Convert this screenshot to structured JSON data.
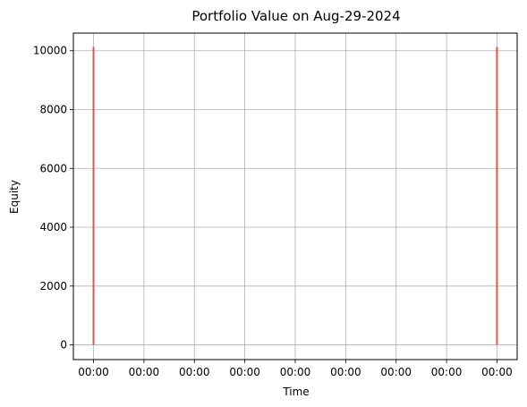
{
  "chart_data": {
    "type": "line",
    "title": "Portfolio Value on Aug-29-2024",
    "xlabel": "Time",
    "ylabel": "Equity",
    "x_tick_labels": [
      "00:00",
      "00:00",
      "00:00",
      "00:00",
      "00:00",
      "00:00",
      "00:00",
      "00:00",
      "00:00"
    ],
    "x_range": [
      -0.4,
      8.4
    ],
    "ylim": [
      -500,
      10600
    ],
    "yticks": [
      0,
      2000,
      4000,
      6000,
      8000,
      10000
    ],
    "grid": true,
    "series_color": "#e8534a",
    "spikes": [
      {
        "x": 0.0,
        "y_min": 0,
        "y_max": 10130
      },
      {
        "x": 8.0,
        "y_min": 0,
        "y_max": 10130
      }
    ]
  }
}
